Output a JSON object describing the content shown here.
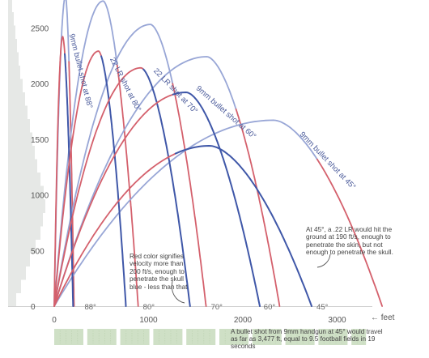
{
  "chart_data": {
    "type": "line",
    "xlabel": "← feet",
    "xlim": [
      -200,
      3750
    ],
    "ylim": [
      0,
      2750
    ],
    "xticks": [
      "0",
      "1000",
      "2000",
      "3000"
    ],
    "yticks": [
      "0",
      "500",
      "1000",
      "1500",
      "2000",
      "2500"
    ],
    "angles": [
      {
        "label": "88°",
        "x": 270
      },
      {
        "label": "80°",
        "x": 890
      },
      {
        "label": "70°",
        "x": 1610
      },
      {
        "label": "60°",
        "x": 2170
      },
      {
        "label": "45°",
        "x": 2730
      }
    ],
    "colors": {
      "fast": "#d4606c",
      "slow": "#3f57a8",
      "faint": "#98a6d6",
      "field": "#cfe0c6",
      "histogram": "#e6e8e6"
    },
    "series": [
      {
        "id": "9mm-88",
        "range": 210,
        "apex": 2780,
        "apex_x": 120,
        "faint": true
      },
      {
        "id": "9mm-80",
        "range": 890,
        "apex": 2740,
        "apex_x": 520,
        "faint": true
      },
      {
        "id": "9mm-70",
        "range": 1610,
        "apex": 2530,
        "apex_x": 1020,
        "faint": true
      },
      {
        "id": "9mm-60",
        "range": 2390,
        "apex": 2240,
        "apex_x": 1620,
        "faint": true
      },
      {
        "id": "9mm-45",
        "range": 3477,
        "apex": 1670,
        "apex_x": 2330,
        "faint": true
      },
      {
        "id": "22lr-88",
        "range": 200,
        "apex": 2420,
        "apex_x": 90,
        "fast_until": 1.2
      },
      {
        "id": "22lr-80",
        "range": 760,
        "apex": 2290,
        "apex_x": 470,
        "fast_until": 1.1
      },
      {
        "id": "22lr-70",
        "range": 1440,
        "apex": 2140,
        "apex_x": 920,
        "fast_until": 1.05
      },
      {
        "id": "22lr-60",
        "range": 2180,
        "apex": 1920,
        "apex_x": 1400,
        "fast_until": 0.9
      },
      {
        "id": "22lr-45",
        "range": 2730,
        "apex": 1440,
        "apex_x": 1650,
        "fast_until": 0.78
      }
    ],
    "histogram": [
      {
        "y": 60,
        "w": 10
      },
      {
        "y": 180,
        "w": 16
      },
      {
        "y": 300,
        "w": 22
      },
      {
        "y": 420,
        "w": 27
      },
      {
        "y": 540,
        "w": 34
      },
      {
        "y": 660,
        "w": 40
      },
      {
        "y": 780,
        "w": 43
      },
      {
        "y": 900,
        "w": 46
      },
      {
        "y": 1020,
        "w": 44
      },
      {
        "y": 1140,
        "w": 40
      },
      {
        "y": 1260,
        "w": 36
      },
      {
        "y": 1380,
        "w": 33
      },
      {
        "y": 1500,
        "w": 30
      },
      {
        "y": 1620,
        "w": 27
      },
      {
        "y": 1740,
        "w": 24
      },
      {
        "y": 1860,
        "w": 21
      },
      {
        "y": 1980,
        "w": 18
      },
      {
        "y": 2100,
        "w": 15
      },
      {
        "y": 2220,
        "w": 13
      },
      {
        "y": 2340,
        "w": 11
      },
      {
        "y": 2460,
        "w": 9
      },
      {
        "y": 2580,
        "w": 7
      },
      {
        "y": 2700,
        "w": 5
      }
    ],
    "curve_labels": [
      {
        "text": "9mm bullet shot at 88°",
        "x": 160,
        "y": 2440,
        "rot": 76
      },
      {
        "text": "22 LR shot at 80°",
        "x": 590,
        "y": 2220,
        "rot": 63
      },
      {
        "text": "22 LR shot at 70°",
        "x": 1050,
        "y": 2110,
        "rot": 46
      },
      {
        "text": "9mm bullet shot at 60°",
        "x": 1500,
        "y": 1950,
        "rot": 41
      },
      {
        "text": "9mm bullet shot at 45°",
        "x": 2600,
        "y": 1540,
        "rot": 46
      }
    ],
    "annotations": [
      {
        "text": "Red color signifies velocity more than 200 ft/s, enough to penetrate the skull blue - less than that"
      },
      {
        "text": "At 45°, a .22 LR would hit the ground at 190 ft/s, enough to penetrate the skin, but not enough to penetrate the skull."
      },
      {
        "text": "A bullet shot from 9mm handgun at 45° would travel as far as 3,477 ft, equal to 9.5 football fields in 19 seconds"
      }
    ],
    "football_fields": 9.5
  }
}
